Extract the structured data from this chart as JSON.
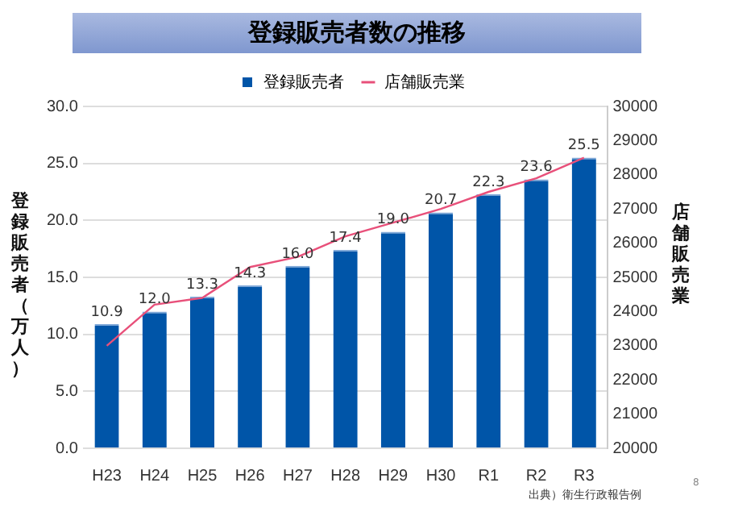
{
  "chart_data": {
    "type": "bar",
    "title": "登録販売者数の推移",
    "ylabel": "登録販売者（万人）",
    "y2label": "店舗販売業",
    "categories": [
      "H23",
      "H24",
      "H25",
      "H26",
      "H27",
      "H28",
      "H29",
      "H30",
      "R1",
      "R2",
      "R3"
    ],
    "series": [
      {
        "name": "登録販売者",
        "color": "#0055a8",
        "values": [
          10.9,
          12.0,
          13.3,
          14.3,
          16.0,
          17.4,
          19.0,
          20.7,
          22.3,
          23.6,
          25.5
        ],
        "value_labels": [
          "10.9",
          "12.0",
          "13.3",
          "14.3",
          "16.0",
          "17.4",
          "19.0",
          "20.7",
          "22.3",
          "23.6",
          "25.5"
        ]
      },
      {
        "name": "店舗販売業",
        "type": "line",
        "axis": "y2",
        "color": "#e8507a",
        "values": [
          23000,
          24200,
          24400,
          25300,
          25600,
          26200,
          26600,
          27000,
          27500,
          27900,
          28500
        ]
      }
    ],
    "ylim": [
      0,
      30
    ],
    "yticks": [
      {
        "value": 0,
        "label": "0.0"
      },
      {
        "value": 5,
        "label": "5.0"
      },
      {
        "value": 10,
        "label": "10.0"
      },
      {
        "value": 15,
        "label": "15.0"
      },
      {
        "value": 20,
        "label": "20.0"
      },
      {
        "value": 25,
        "label": "25.0"
      },
      {
        "value": 30,
        "label": "30.0"
      }
    ],
    "y2lim": [
      20000,
      30000
    ],
    "y2ticks": [
      20000,
      21000,
      22000,
      23000,
      24000,
      25000,
      26000,
      27000,
      28000,
      29000,
      30000
    ],
    "grid": "y",
    "legend": "top",
    "marker": "none",
    "line_style": "solid",
    "annotations": [
      "出典）衛生行政報告例",
      "8"
    ]
  }
}
